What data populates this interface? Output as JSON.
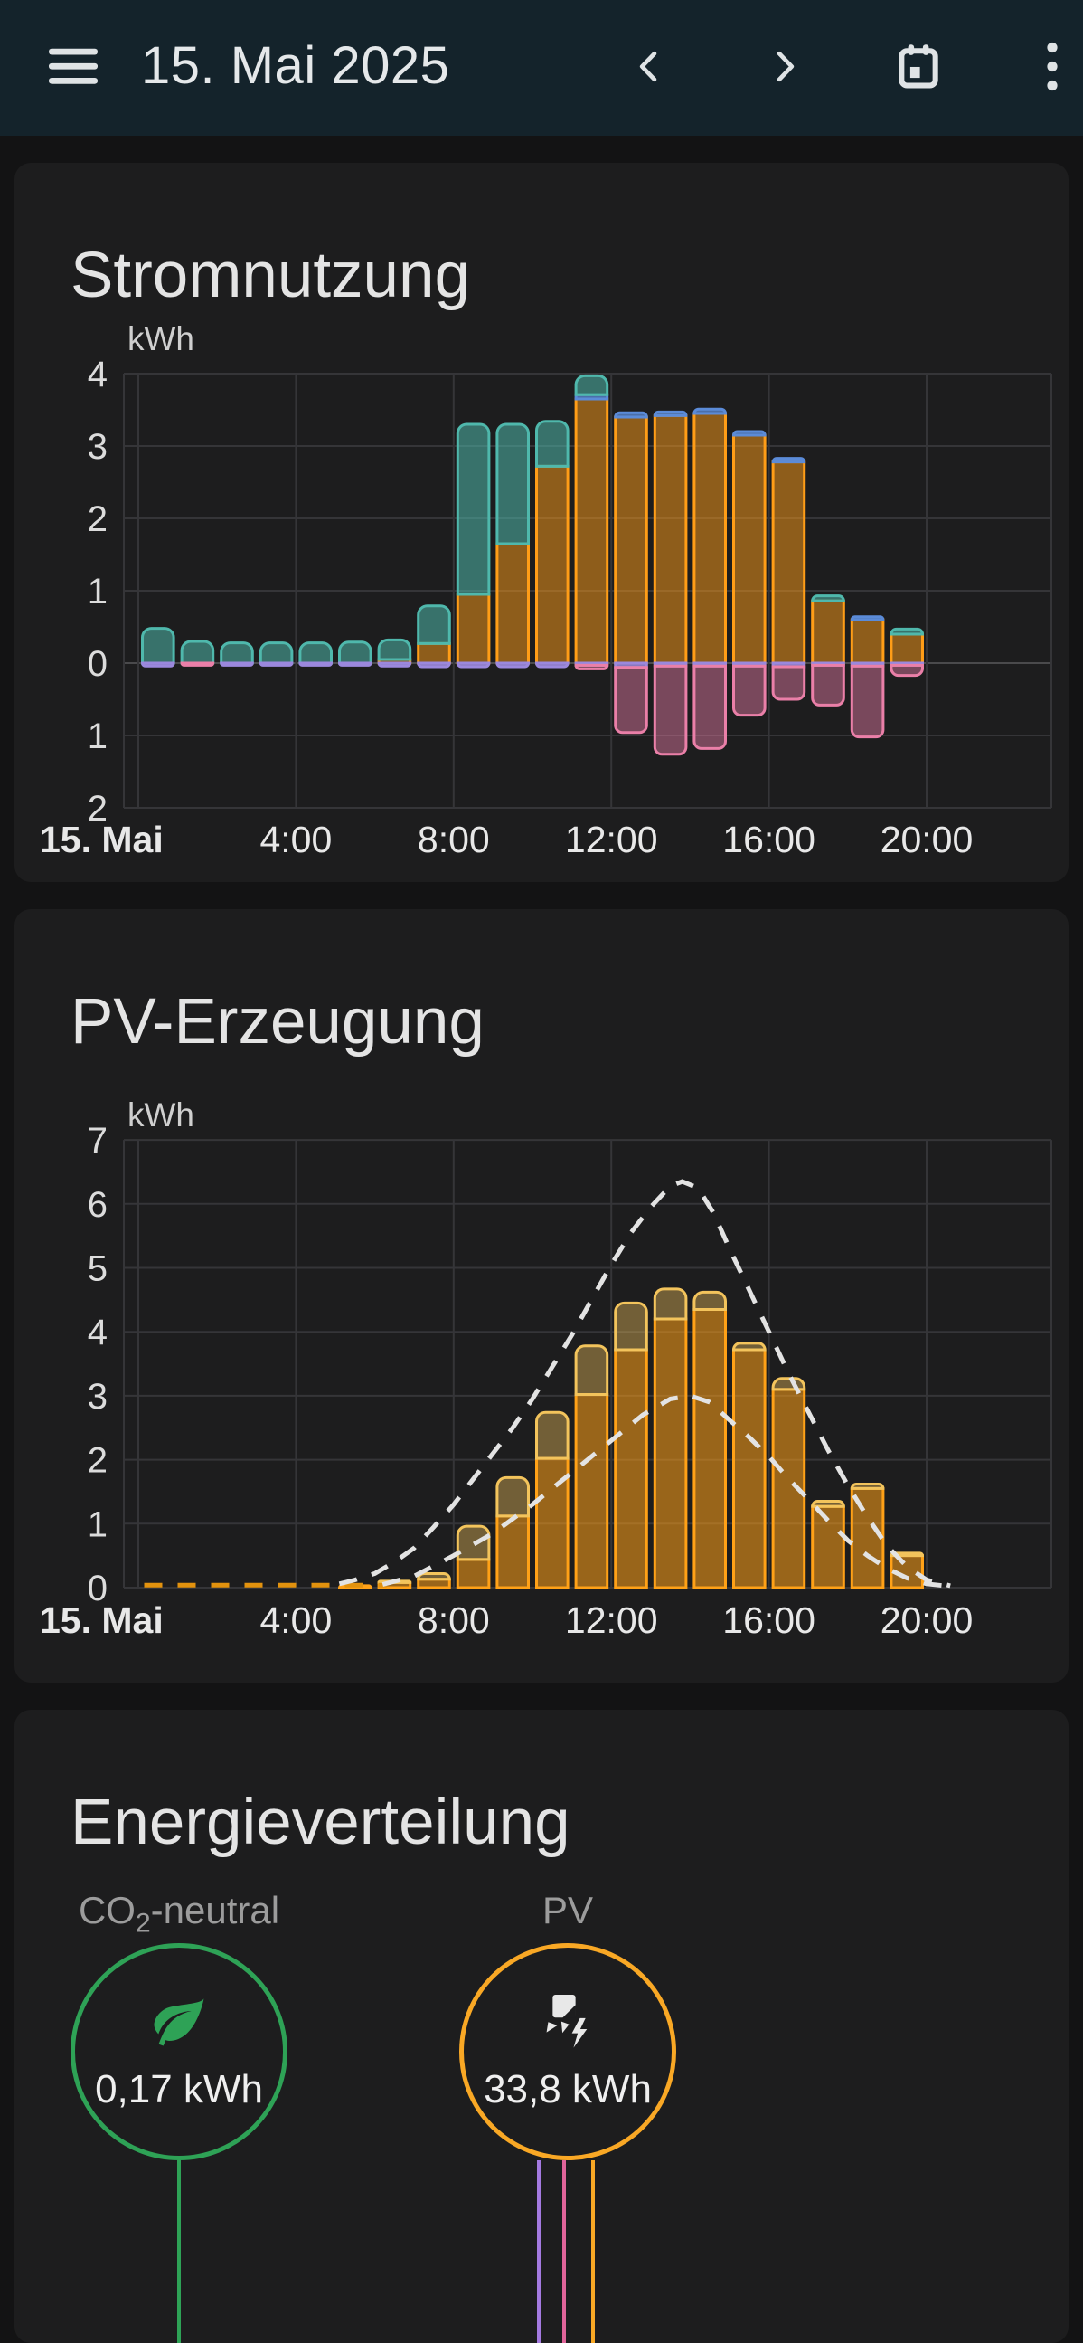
{
  "theme": {
    "page-bg": "#131314",
    "appbar-bg": "#14232b",
    "card-bg": "#1d1d1e",
    "grid-line": "#353538",
    "zero-line": "#4a4a4c",
    "axis-text": "#dcdcdc"
  },
  "app_bar": {
    "title": "15. Mai 2025",
    "menu_icon": "menu-icon",
    "prev_icon": "chevron-left-icon",
    "next_icon": "chevron-right-icon",
    "calendar_icon": "calendar-icon",
    "more_icon": "kebab-menu-icon"
  },
  "chart_data": [
    {
      "type": "bar",
      "title": "Stromnutzung",
      "unit": "kWh",
      "ylim": [
        -2,
        4
      ],
      "grid": true,
      "x_ticks": [
        {
          "label": "15. Mai",
          "hour": 0,
          "bold": true
        },
        {
          "label": "4:00",
          "hour": 4
        },
        {
          "label": "8:00",
          "hour": 8
        },
        {
          "label": "12:00",
          "hour": 12
        },
        {
          "label": "16:00",
          "hour": 16
        },
        {
          "label": "20:00",
          "hour": 20
        }
      ],
      "y_ticks": [
        {
          "label": "4",
          "value": 4
        },
        {
          "label": "3",
          "value": 3
        },
        {
          "label": "2",
          "value": 2
        },
        {
          "label": "1",
          "value": 1
        },
        {
          "label": "0",
          "value": 0
        },
        {
          "label": "1",
          "value": -1
        },
        {
          "label": "2",
          "value": -2
        }
      ],
      "pos_series": [
        {
          "name": "solar-consumption",
          "stroke": "#ff9d17",
          "fill": "rgba(255,157,23,0.5)",
          "values": [
            0,
            0,
            0,
            0,
            0,
            0,
            0.05,
            0.27,
            0.95,
            1.65,
            2.72,
            3.65,
            3.4,
            3.42,
            3.45,
            3.15,
            2.78,
            0.86,
            0.6,
            0.4
          ]
        },
        {
          "name": "grid-consumption",
          "stroke": "#5b8bd8",
          "fill": "rgba(91,139,216,0.75)",
          "values": [
            0,
            0,
            0,
            0,
            0,
            0,
            0,
            0,
            0,
            0,
            0,
            0.06,
            0.06,
            0.05,
            0.06,
            0.05,
            0.05,
            0,
            0.04,
            0
          ]
        },
        {
          "name": "battery-consumption",
          "stroke": "#4fb8ac",
          "fill": "rgba(79,184,172,0.55)",
          "values": [
            0.48,
            0.3,
            0.28,
            0.28,
            0.28,
            0.29,
            0.27,
            0.52,
            2.35,
            1.65,
            0.62,
            0.26,
            0,
            0,
            0,
            0,
            0,
            0.07,
            0,
            0.07
          ]
        }
      ],
      "neg_series": [
        {
          "name": "battery-charging",
          "stroke": "#9b88dd",
          "fill": "rgba(155,136,221,0.85)",
          "values": [
            0.04,
            0,
            0.03,
            0.03,
            0.03,
            0.03,
            0.04,
            0.05,
            0.05,
            0.05,
            0.05,
            0.03,
            0.06,
            0.04,
            0.04,
            0.04,
            0.05,
            0.03,
            0.04,
            0.03
          ]
        },
        {
          "name": "grid-return",
          "stroke": "#ea7fa8",
          "fill": "rgba(234,127,168,0.45)",
          "values": [
            0,
            0.03,
            0,
            0,
            0,
            0,
            0,
            0,
            0,
            0,
            0,
            0.05,
            0.9,
            1.22,
            1.14,
            0.68,
            0.45,
            0.55,
            0.98,
            0.14
          ]
        }
      ],
      "lines": []
    },
    {
      "type": "bar",
      "title": "PV-Erzeugung",
      "unit": "kWh",
      "ylim": [
        0,
        7
      ],
      "grid": true,
      "x_ticks": [
        {
          "label": "15. Mai",
          "hour": 0,
          "bold": true
        },
        {
          "label": "4:00",
          "hour": 4
        },
        {
          "label": "8:00",
          "hour": 8
        },
        {
          "label": "12:00",
          "hour": 12
        },
        {
          "label": "16:00",
          "hour": 16
        },
        {
          "label": "20:00",
          "hour": 20
        }
      ],
      "y_ticks": [
        {
          "label": "7",
          "value": 7
        },
        {
          "label": "6",
          "value": 6
        },
        {
          "label": "5",
          "value": 5
        },
        {
          "label": "4",
          "value": 4
        },
        {
          "label": "3",
          "value": 3
        },
        {
          "label": "2",
          "value": 2
        },
        {
          "label": "1",
          "value": 1
        },
        {
          "label": "0",
          "value": 0
        }
      ],
      "pos_series": [
        {
          "name": "pv-production-1",
          "stroke": "#ffa117",
          "fill": "rgba(255,161,23,0.55)",
          "values": [
            0,
            0,
            0,
            0,
            0,
            0.03,
            0.08,
            0.13,
            0.44,
            1.12,
            2.02,
            3.02,
            3.72,
            4.2,
            4.35,
            3.72,
            3.1,
            1.27,
            1.55,
            0.5
          ]
        },
        {
          "name": "pv-production-2",
          "stroke": "#f3c45c",
          "fill": "rgba(243,196,92,0.4)",
          "values": [
            0,
            0,
            0,
            0,
            0,
            0,
            0.02,
            0.09,
            0.52,
            0.6,
            0.72,
            0.76,
            0.73,
            0.47,
            0.27,
            0.1,
            0.17,
            0.08,
            0.07,
            0.04
          ]
        }
      ],
      "neg_series": [],
      "lines": [
        {
          "name": "pv-forecast-night",
          "color": "#e2920e",
          "dash": "20 17",
          "width": 5,
          "points": [
            [
              0.15,
              0.04
            ],
            [
              6.3,
              0.04
            ]
          ]
        },
        {
          "name": "pv-forecast-total",
          "color": "#e3e3e3",
          "dash": "20 17",
          "width": 5,
          "points": [
            [
              5.1,
              0.06
            ],
            [
              5.5,
              0.12
            ],
            [
              6,
              0.22
            ],
            [
              6.5,
              0.4
            ],
            [
              7,
              0.62
            ],
            [
              7.5,
              0.95
            ],
            [
              8,
              1.3
            ],
            [
              8.5,
              1.7
            ],
            [
              9,
              2.1
            ],
            [
              9.5,
              2.5
            ],
            [
              10,
              2.95
            ],
            [
              10.5,
              3.45
            ],
            [
              11,
              3.95
            ],
            [
              11.5,
              4.5
            ],
            [
              12,
              5.05
            ],
            [
              12.5,
              5.55
            ],
            [
              13,
              5.95
            ],
            [
              13.5,
              6.28
            ],
            [
              13.8,
              6.35
            ],
            [
              14.2,
              6.25
            ],
            [
              14.6,
              5.85
            ],
            [
              15,
              5.3
            ],
            [
              15.5,
              4.65
            ],
            [
              16,
              4.0
            ],
            [
              16.5,
              3.35
            ],
            [
              17,
              2.75
            ],
            [
              17.5,
              2.15
            ],
            [
              18,
              1.6
            ],
            [
              18.5,
              1.1
            ],
            [
              19,
              0.65
            ],
            [
              19.5,
              0.33
            ],
            [
              20,
              0.12
            ],
            [
              20.6,
              0.03
            ]
          ]
        },
        {
          "name": "pv-forecast-secondary",
          "color": "#e3e3e3",
          "dash": "20 17",
          "width": 5,
          "points": [
            [
              6.2,
              0.05
            ],
            [
              7,
              0.18
            ],
            [
              8,
              0.5
            ],
            [
              9,
              0.85
            ],
            [
              10,
              1.3
            ],
            [
              11,
              1.8
            ],
            [
              12,
              2.3
            ],
            [
              12.8,
              2.7
            ],
            [
              13.5,
              2.95
            ],
            [
              14,
              3.0
            ],
            [
              14.5,
              2.9
            ],
            [
              15,
              2.62
            ],
            [
              15.5,
              2.35
            ],
            [
              16,
              2.05
            ],
            [
              16.5,
              1.7
            ],
            [
              17,
              1.38
            ],
            [
              17.5,
              1.05
            ],
            [
              18,
              0.74
            ],
            [
              18.5,
              0.5
            ],
            [
              19,
              0.3
            ],
            [
              19.5,
              0.15
            ],
            [
              20,
              0.06
            ],
            [
              20.6,
              0.02
            ]
          ]
        }
      ]
    }
  ],
  "distribution": {
    "title": "Energieverteilung",
    "items": [
      {
        "label_prefix": "CO",
        "label_sub": "2",
        "label_suffix": "-neutral",
        "value": "0,17 kWh",
        "color": "#2ea256",
        "icon": "leaf-icon"
      },
      {
        "label": "PV",
        "value": "33,8 kWh",
        "color": "#f9a825",
        "icon": "solar-power-icon"
      }
    ],
    "flow_colors": {
      "co2": "#2ea256",
      "battery": "#a47ae0",
      "grid_return": "#e0659a",
      "pv": "#f9a825"
    }
  }
}
